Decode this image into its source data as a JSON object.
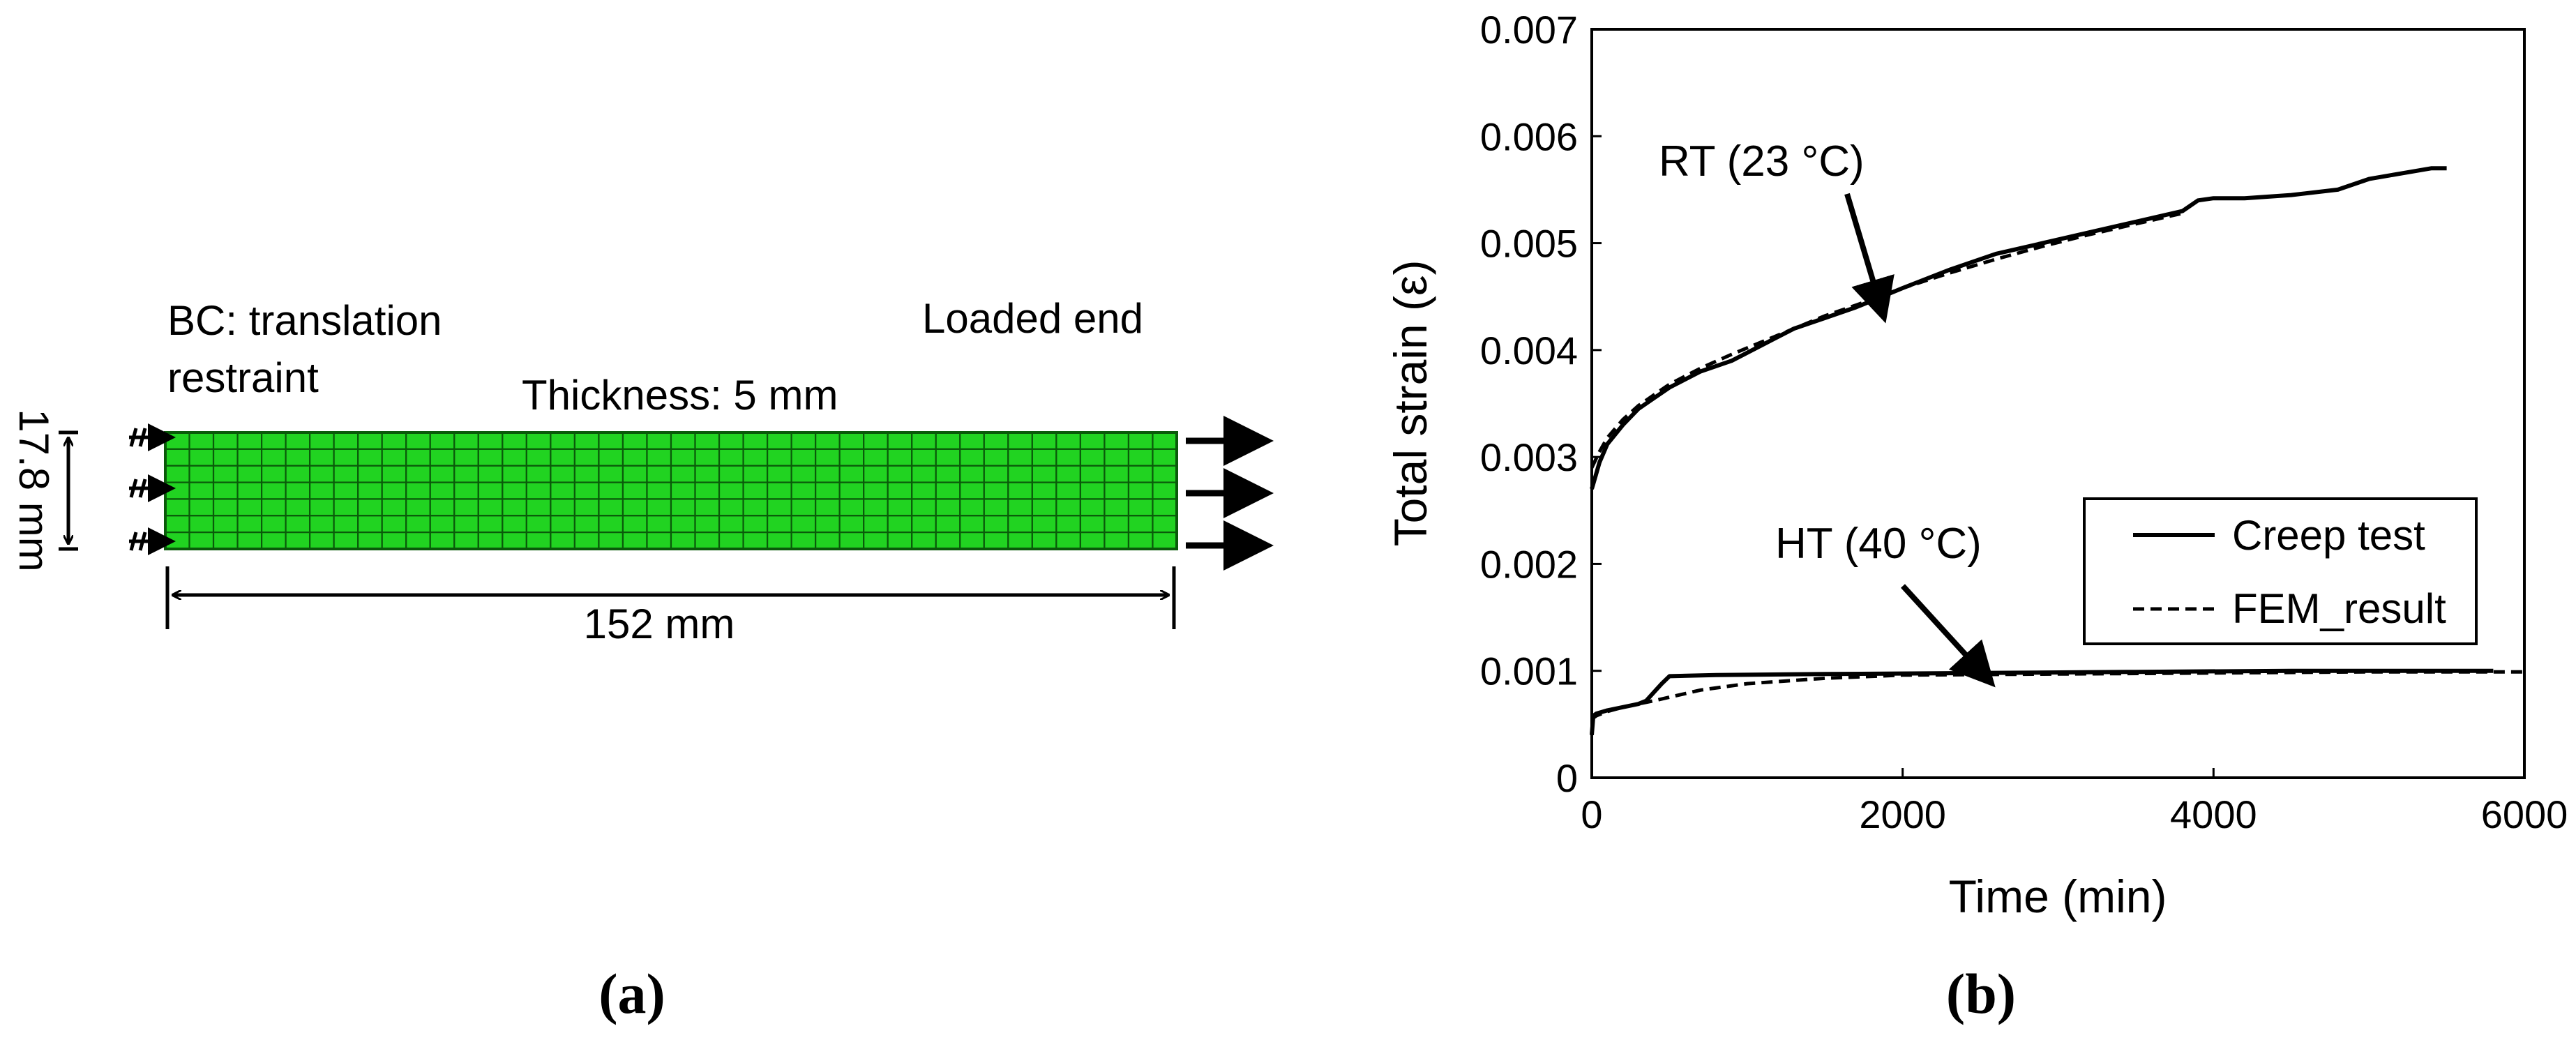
{
  "panel_a": {
    "label": "(a)",
    "bc_line1": "BC: translation",
    "bc_line2": "restraint",
    "loaded_end": "Loaded end",
    "thickness": "Thickness: 5 mm",
    "width_dim": "17.8 mm",
    "length_dim": "152 mm",
    "mesh": {
      "columns": 42,
      "rows": 7,
      "fill_color": "#21d321",
      "line_color": "#0a5a0a"
    }
  },
  "panel_b": {
    "label": "(b)",
    "chart_data": {
      "type": "line",
      "xlabel": "Time (min)",
      "ylabel": "Total strain (ε)",
      "xlim": [
        0,
        6000
      ],
      "ylim": [
        0,
        0.007
      ],
      "x_ticks": [
        0,
        2000,
        4000,
        6000
      ],
      "x_tick_labels": [
        "0",
        "2000",
        "4000",
        "6000"
      ],
      "y_ticks": [
        0,
        0.001,
        0.002,
        0.003,
        0.004,
        0.005,
        0.006,
        0.007
      ],
      "y_tick_labels": [
        "0",
        "0.001",
        "0.002",
        "0.003",
        "0.004",
        "0.005",
        "0.006",
        "0.007"
      ],
      "grid": false,
      "legend_position": "center-right",
      "legend": [
        {
          "name": "Creep test",
          "style": "solid"
        },
        {
          "name": "FEM_result",
          "style": "dashed"
        }
      ],
      "annotations": [
        {
          "text": "RT (23 °C)",
          "arrow_to": [
            1850,
            0.00445
          ]
        },
        {
          "text": "HT (40 °C)",
          "arrow_to": [
            2500,
            0.001
          ]
        }
      ],
      "series": [
        {
          "group": "Creep test",
          "condition": "RT (23 °C)",
          "style": "solid",
          "x": [
            0,
            50,
            100,
            200,
            300,
            400,
            500,
            700,
            900,
            1100,
            1300,
            1500,
            1700,
            2000,
            2300,
            2600,
            2900,
            3200,
            3500,
            3800,
            3900,
            4000,
            4200,
            4500,
            4800,
            5000,
            5200,
            5400,
            5500
          ],
          "y": [
            0.0027,
            0.00295,
            0.00312,
            0.0033,
            0.00345,
            0.00355,
            0.00365,
            0.0038,
            0.0039,
            0.00405,
            0.0042,
            0.0043,
            0.0044,
            0.00458,
            0.00475,
            0.0049,
            0.005,
            0.0051,
            0.0052,
            0.0053,
            0.0054,
            0.00542,
            0.00542,
            0.00545,
            0.0055,
            0.0056,
            0.00565,
            0.0057,
            0.0057
          ]
        },
        {
          "group": "FEM_result",
          "condition": "RT (23 °C)",
          "style": "dashed",
          "x": [
            0,
            50,
            100,
            200,
            300,
            400,
            500,
            700,
            900,
            1100,
            1300,
            1500,
            1700,
            2000,
            2300,
            2600,
            2900,
            3200,
            3500,
            3800
          ],
          "y": [
            0.0029,
            0.00305,
            0.00318,
            0.00335,
            0.00348,
            0.00358,
            0.00368,
            0.00383,
            0.00396,
            0.00408,
            0.0042,
            0.00432,
            0.00442,
            0.00458,
            0.00472,
            0.00485,
            0.00497,
            0.00508,
            0.00518,
            0.00528
          ]
        },
        {
          "group": "Creep test",
          "condition": "HT (40 °C)",
          "style": "solid",
          "x": [
            0,
            10,
            30,
            100,
            200,
            300,
            350,
            400,
            450,
            500,
            800,
            1500,
            2500,
            3500,
            4500,
            5500,
            5800
          ],
          "y": [
            0.0004,
            0.00058,
            0.0006,
            0.00063,
            0.00066,
            0.00069,
            0.00072,
            0.0008,
            0.00088,
            0.00095,
            0.00096,
            0.00097,
            0.00098,
            0.00099,
            0.001,
            0.001,
            0.001
          ]
        },
        {
          "group": "FEM_result",
          "condition": "HT (40 °C)",
          "style": "dashed",
          "x": [
            0,
            30,
            100,
            200,
            400,
            700,
            1000,
            1500,
            2000,
            3000,
            4000,
            5000,
            6000
          ],
          "y": [
            0.00055,
            0.00058,
            0.00062,
            0.00066,
            0.00072,
            0.00082,
            0.00088,
            0.00093,
            0.00096,
            0.00097,
            0.00098,
            0.00099,
            0.00099
          ]
        }
      ]
    }
  }
}
